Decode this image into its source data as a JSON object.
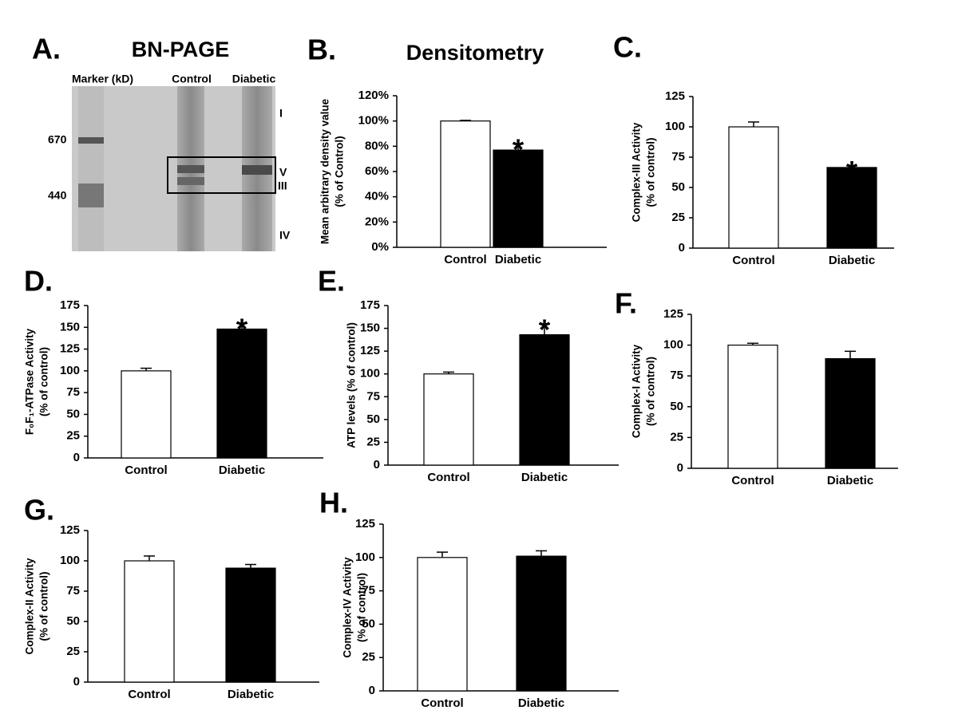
{
  "gel": {
    "panel": "A.",
    "title": "BN-PAGE",
    "lane_labels": [
      "Marker (kD)",
      "Control",
      "Diabetic"
    ],
    "marker_labels": [
      "670",
      "440"
    ],
    "complex_labels": [
      "I",
      "V",
      "III",
      "IV"
    ]
  },
  "chart_data": [
    {
      "type": "bar",
      "panel": "B.",
      "title": "Densitometry",
      "ylabel": [
        "Mean arbitrary density value",
        "(% of Control)"
      ],
      "categories": [
        "Control",
        "Diabetic"
      ],
      "values": [
        100,
        77
      ],
      "errors": [
        0.5,
        5
      ],
      "colors": [
        "#ffffff",
        "#000000"
      ],
      "significance": "*",
      "ylim": [
        0,
        120
      ],
      "yticks": [
        {
          "value": 0,
          "label": "0%"
        },
        {
          "value": 20,
          "label": "20%"
        },
        {
          "value": 40,
          "label": "40%"
        },
        {
          "value": 60,
          "label": "60%"
        },
        {
          "value": 80,
          "label": "80%"
        },
        {
          "value": 100,
          "label": "100%"
        },
        {
          "value": 120,
          "label": "120%"
        }
      ]
    },
    {
      "type": "bar",
      "panel": "C.",
      "ylabel": [
        "Complex-III Activity",
        "(% of control)"
      ],
      "categories": [
        "Control",
        "Diabetic"
      ],
      "values": [
        100,
        66.5
      ],
      "errors": [
        4,
        1.5
      ],
      "colors": [
        "#ffffff",
        "#000000"
      ],
      "significance": "*",
      "ylim": [
        0,
        125
      ],
      "yticks": [
        0,
        25,
        50,
        75,
        100,
        125
      ]
    },
    {
      "type": "bar",
      "panel": "D.",
      "ylabel": [
        "F₀F₁-ATPase Activity",
        "(% of control)"
      ],
      "categories": [
        "Control",
        "Diabetic"
      ],
      "values": [
        100,
        148
      ],
      "errors": [
        3,
        7
      ],
      "colors": [
        "#ffffff",
        "#000000"
      ],
      "significance": "*",
      "ylim": [
        0,
        175
      ],
      "yticks": [
        0,
        25,
        50,
        75,
        100,
        125,
        150,
        175
      ]
    },
    {
      "type": "bar",
      "panel": "E.",
      "ylabel": [
        "ATP levels (% of control)"
      ],
      "categories": [
        "Control",
        "Diabetic"
      ],
      "values": [
        100,
        143
      ],
      "errors": [
        2,
        12
      ],
      "colors": [
        "#ffffff",
        "#000000"
      ],
      "significance": "*",
      "ylim": [
        0,
        175
      ],
      "yticks": [
        0,
        25,
        50,
        75,
        100,
        125,
        150,
        175
      ]
    },
    {
      "type": "bar",
      "panel": "F.",
      "ylabel": [
        "Complex-I Activity",
        "(% of control)"
      ],
      "categories": [
        "Control",
        "Diabetic"
      ],
      "values": [
        100,
        89
      ],
      "errors": [
        1.5,
        6
      ],
      "colors": [
        "#ffffff",
        "#000000"
      ],
      "ylim": [
        0,
        125
      ],
      "yticks": [
        0,
        25,
        50,
        75,
        100,
        125
      ]
    },
    {
      "type": "bar",
      "panel": "G.",
      "ylabel": [
        "Complex-II Activity",
        "(% of control)"
      ],
      "categories": [
        "Control",
        "Diabetic"
      ],
      "values": [
        100,
        94
      ],
      "errors": [
        4,
        3
      ],
      "colors": [
        "#ffffff",
        "#000000"
      ],
      "ylim": [
        0,
        125
      ],
      "yticks": [
        0,
        25,
        50,
        75,
        100,
        125
      ]
    },
    {
      "type": "bar",
      "panel": "H.",
      "ylabel": [
        "Complex-IV Activity",
        "(% of control)"
      ],
      "categories": [
        "Control",
        "Diabetic"
      ],
      "values": [
        100,
        101
      ],
      "errors": [
        4,
        4
      ],
      "colors": [
        "#ffffff",
        "#000000"
      ],
      "ylim": [
        0,
        125
      ],
      "yticks": [
        0,
        25,
        50,
        75,
        100,
        125
      ]
    }
  ]
}
